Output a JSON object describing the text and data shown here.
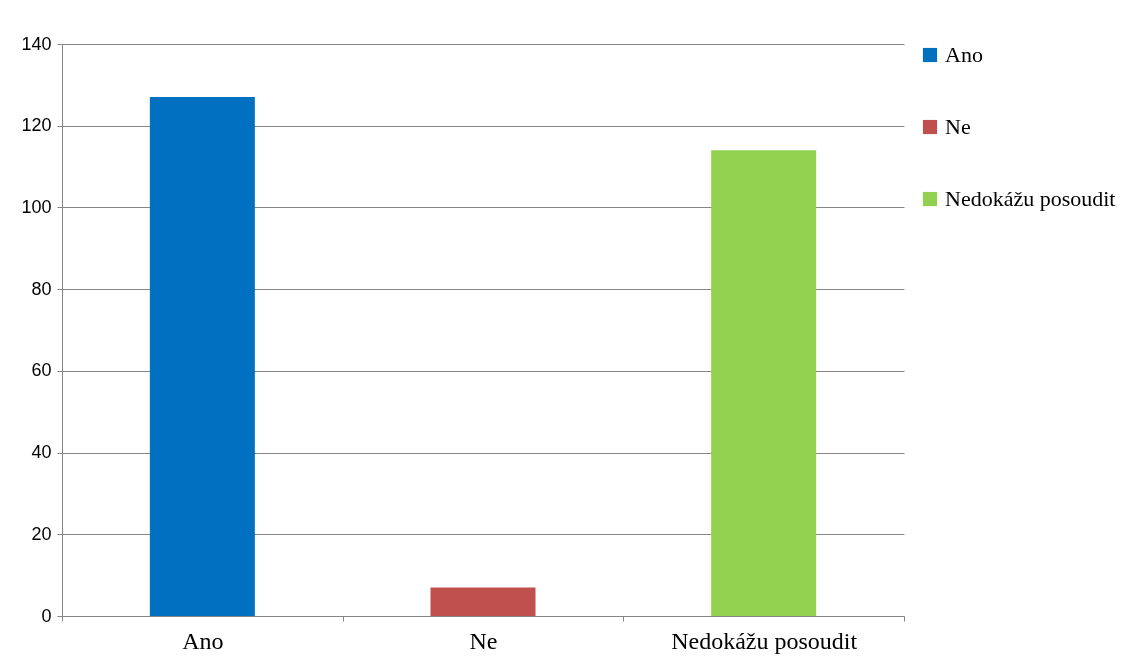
{
  "chart_data": {
    "type": "bar",
    "categories": [
      "Ano",
      "Ne",
      "Nedokážu posoudit"
    ],
    "series": [
      {
        "name": "Ano",
        "color": "#0070c0",
        "values": [
          127,
          null,
          null
        ]
      },
      {
        "name": "Ne",
        "color": "#c0504d",
        "values": [
          null,
          7,
          null
        ]
      },
      {
        "name": "Nedokážu posoudit",
        "color": "#92d050",
        "values": [
          null,
          null,
          114
        ]
      }
    ],
    "ylim": [
      0,
      140
    ],
    "yticks": [
      0,
      20,
      40,
      60,
      80,
      100,
      120,
      140
    ],
    "grid": "y",
    "legend": "right"
  }
}
